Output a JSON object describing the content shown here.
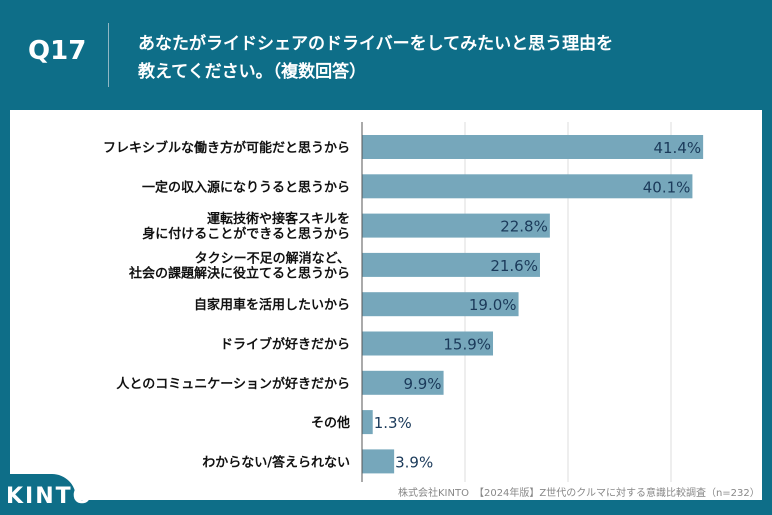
{
  "header": {
    "question_no": "Q17",
    "title_line1": "あなたがライドシェアのドライバーをしてみたいと思う理由を",
    "title_line2": "教えてください。（複数回答）"
  },
  "footer": {
    "logo": "KINTO",
    "source": "株式会社KINTO　【2024年版】Z世代のクルマに対する意識比較調査（n=232）"
  },
  "colors": {
    "background": "#0e6e88",
    "bar": "#76a7bb",
    "value_text": "#1b3a5a"
  },
  "chart_data": {
    "type": "bar",
    "orientation": "horizontal",
    "xlim": [
      0,
      50
    ],
    "grid": true,
    "unit": "%",
    "categories": [
      "フレキシブルな働き方が可能だと思うから",
      "一定の収入源になりうると思うから",
      "運転技術や接客スキルを\n身に付けることができると思うから",
      "タクシー不足の解消など、\n社会の課題解決に役立てると思うから",
      "自家用車を活用したいから",
      "ドライブが好きだから",
      "人とのコミュニケーションが好きだから",
      "その他",
      "わからない/答えられない"
    ],
    "values": [
      41.4,
      40.1,
      22.8,
      21.6,
      19.0,
      15.9,
      9.9,
      1.3,
      3.9
    ],
    "labels": [
      "41.4%",
      "40.1%",
      "22.8%",
      "21.6%",
      "19.0%",
      "15.9%",
      "9.9%",
      "1.3%",
      "3.9%"
    ]
  }
}
